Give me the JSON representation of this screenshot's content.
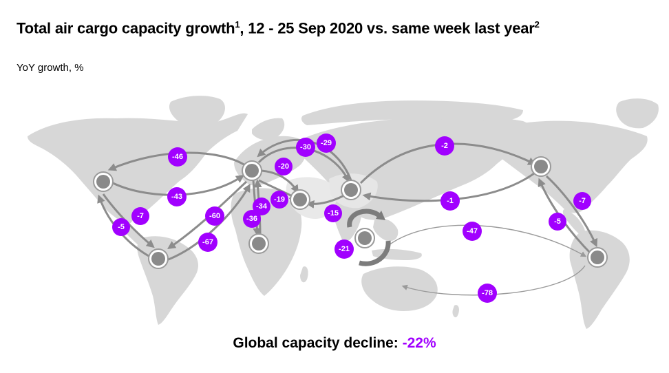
{
  "header": {
    "title": "Total air cargo capacity growth",
    "title_sup1": "1",
    "title_mid": ", 12 - 25 Sep 2020 vs. same week last year",
    "title_sup2": "2",
    "subtitle": "YoY growth, %"
  },
  "footer": {
    "label": "Global capacity decline: ",
    "value": "-22%"
  },
  "colors": {
    "accent": "#a100ff",
    "land": "#d7d7d7",
    "arrow": "#8c8c8c",
    "hub": "#8a8a8a"
  },
  "hubs": [
    "north-america",
    "south-america",
    "europe",
    "africa",
    "middle-east",
    "south-asia",
    "asia-pacific",
    "china-east-asia",
    "nafta-east",
    "latin-america-east"
  ],
  "routes": [
    {
      "id": "eu-na-46",
      "label": "-46"
    },
    {
      "id": "eu-na-43",
      "label": "-43"
    },
    {
      "id": "na-la-7",
      "label": "-7"
    },
    {
      "id": "na-la-5",
      "label": "-5"
    },
    {
      "id": "eu-la-60",
      "label": "-60"
    },
    {
      "id": "eu-la-67",
      "label": "-67"
    },
    {
      "id": "eu-af-34",
      "label": "-34"
    },
    {
      "id": "eu-af-36",
      "label": "-36"
    },
    {
      "id": "eu-me-19",
      "label": "-19"
    },
    {
      "id": "eu-me-20",
      "label": "-20"
    },
    {
      "id": "eu-as-30",
      "label": "-30"
    },
    {
      "id": "eu-as-29",
      "label": "-29"
    },
    {
      "id": "me-as-15",
      "label": "-15"
    },
    {
      "id": "intra-asia-21",
      "label": "-21"
    },
    {
      "id": "as-na-2",
      "label": "-2"
    },
    {
      "id": "as-na-1",
      "label": "-1"
    },
    {
      "id": "na-la-east-7",
      "label": "-7"
    },
    {
      "id": "na-la-east-5",
      "label": "-5"
    },
    {
      "id": "as-la-47",
      "label": "-47"
    },
    {
      "id": "as-la-78",
      "label": "-78"
    }
  ]
}
